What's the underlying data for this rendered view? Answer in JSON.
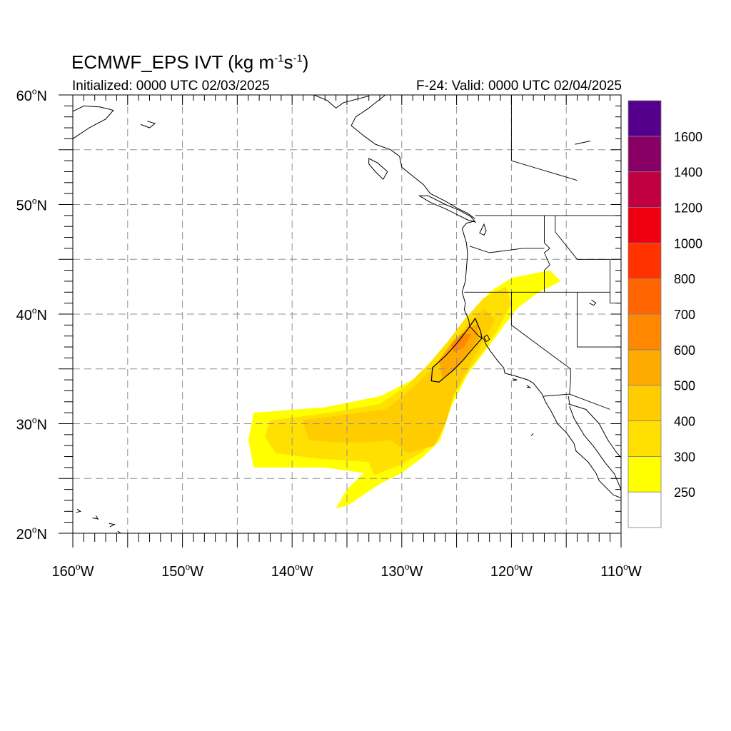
{
  "title": {
    "main": "ECMWF_EPS IVT (kg m",
    "exp1": "-1",
    "mid": "s",
    "exp2": "-1",
    "close": ")"
  },
  "subtitle": {
    "init": "Initialized: 0000 UTC 02/03/2025",
    "valid": "F-24: Valid: 0000 UTC 02/04/2025"
  },
  "axes": {
    "lon_range": [
      -160,
      -110
    ],
    "lat_range": [
      20,
      60
    ],
    "lon_ticks": [
      -160,
      -150,
      -140,
      -130,
      -120,
      -110
    ],
    "lon_labels": [
      "160",
      "150",
      "140",
      "130",
      "120",
      "110"
    ],
    "lon_suffix": "W",
    "lat_ticks": [
      20,
      30,
      40,
      50,
      60
    ],
    "lat_labels": [
      "20",
      "30",
      "40",
      "50",
      "60"
    ],
    "lat_suffix": "N",
    "degree": "o",
    "gridlines": "dashed every 5 degrees"
  },
  "colorbar": {
    "labels": [
      "250",
      "300",
      "400",
      "500",
      "600",
      "700",
      "800",
      "1000",
      "1200",
      "1400",
      "1600"
    ],
    "colors": [
      "#ffffff",
      "#ffff00",
      "#ffe000",
      "#ffcc00",
      "#ffaa00",
      "#ff8800",
      "#ff6400",
      "#ff3200",
      "#ee0011",
      "#c00040",
      "#880066",
      "#55008c"
    ]
  },
  "ivt_field": {
    "units": "kg m-1 s-1",
    "levels": [
      {
        "ivt": 250,
        "polygon": [
          [
            -143.5,
            31
          ],
          [
            -137,
            31.5
          ],
          [
            -132,
            32.5
          ],
          [
            -129,
            34
          ],
          [
            -127,
            36
          ],
          [
            -125,
            38
          ],
          [
            -123.5,
            40
          ],
          [
            -122,
            42
          ],
          [
            -120,
            43.3
          ],
          [
            -116.5,
            44
          ],
          [
            -115.5,
            43
          ],
          [
            -117.5,
            42
          ],
          [
            -119.5,
            40.5
          ],
          [
            -121,
            38.5
          ],
          [
            -122.5,
            36.5
          ],
          [
            -124,
            34.5
          ],
          [
            -125.5,
            31.5
          ],
          [
            -126.5,
            28.5
          ],
          [
            -128,
            27
          ],
          [
            -130,
            25.5
          ],
          [
            -132,
            24.5
          ],
          [
            -133.5,
            23.5
          ],
          [
            -135,
            22.5
          ],
          [
            -136,
            22.3
          ],
          [
            -135,
            24
          ],
          [
            -133.5,
            25.5
          ],
          [
            -137,
            26
          ],
          [
            -143.5,
            26
          ],
          [
            -144,
            28.5
          ]
        ]
      },
      {
        "ivt": 300,
        "polygon": [
          [
            -142,
            30.3
          ],
          [
            -136.5,
            31
          ],
          [
            -132,
            31.8
          ],
          [
            -129.5,
            33.5
          ],
          [
            -127.5,
            35.5
          ],
          [
            -125.8,
            37.5
          ],
          [
            -124.3,
            39.5
          ],
          [
            -122.5,
            41.5
          ],
          [
            -120.5,
            42.5
          ],
          [
            -120,
            41
          ],
          [
            -121,
            39
          ],
          [
            -122.3,
            37
          ],
          [
            -123.8,
            35
          ],
          [
            -125.3,
            32.5
          ],
          [
            -126.5,
            29.5
          ],
          [
            -128,
            27.5
          ],
          [
            -130,
            26.3
          ],
          [
            -132.5,
            25.3
          ],
          [
            -133,
            26.5
          ],
          [
            -137.5,
            26.8
          ],
          [
            -141.5,
            27.3
          ],
          [
            -142.5,
            28.8
          ]
        ]
      },
      {
        "ivt": 400,
        "polygon": [
          [
            -139,
            30.3
          ],
          [
            -135.5,
            30.8
          ],
          [
            -131.5,
            31.3
          ],
          [
            -129.5,
            32.8
          ],
          [
            -127.2,
            35
          ],
          [
            -125.3,
            37.3
          ],
          [
            -123.8,
            39.3
          ],
          [
            -122.5,
            40.5
          ],
          [
            -121.5,
            39.5
          ],
          [
            -122.6,
            37.5
          ],
          [
            -124,
            35
          ],
          [
            -125.3,
            32.5
          ],
          [
            -126,
            30
          ],
          [
            -127,
            28
          ],
          [
            -129.5,
            27.3
          ],
          [
            -131,
            28.5
          ],
          [
            -133,
            28.3
          ],
          [
            -136,
            28.3
          ],
          [
            -138.5,
            28.5
          ]
        ]
      },
      {
        "ivt": 500,
        "polygon": [
          [
            -126.6,
            35.8
          ],
          [
            -125.3,
            37.6
          ],
          [
            -124.1,
            38.6
          ],
          [
            -123.1,
            39.1
          ],
          [
            -123,
            37.8
          ],
          [
            -123.8,
            36.6
          ],
          [
            -125,
            35
          ],
          [
            -126.3,
            34.2
          ]
        ]
      },
      {
        "ivt": 600,
        "polygon": [
          [
            -125.5,
            37.2
          ],
          [
            -124.5,
            38.2
          ],
          [
            -123.7,
            38.2
          ],
          [
            -124.3,
            37
          ],
          [
            -125.2,
            36.5
          ]
        ]
      }
    ],
    "contour": [
      [
        -127.3,
        33.9
      ],
      [
        -127.2,
        35.1
      ],
      [
        -126,
        36.2
      ],
      [
        -125,
        37.3
      ],
      [
        -124,
        38.6
      ],
      [
        -123.3,
        39.6
      ],
      [
        -122.8,
        38.4
      ],
      [
        -122.7,
        37.8
      ],
      [
        -123.4,
        37
      ],
      [
        -124.4,
        35.8
      ],
      [
        -125.4,
        34.8
      ],
      [
        -126.6,
        33.8
      ]
    ]
  },
  "basemap": {
    "line_color": "#000000",
    "coast_west": [
      [
        -123.3,
        48.5
      ],
      [
        -124.1,
        48.3
      ],
      [
        -124.5,
        47.8
      ],
      [
        -124.1,
        46.5
      ],
      [
        -124,
        45.5
      ],
      [
        -124.1,
        44.2
      ],
      [
        -124.2,
        43
      ],
      [
        -124.5,
        42
      ],
      [
        -124.2,
        41
      ],
      [
        -124.3,
        40.4
      ],
      [
        -123.9,
        39.5
      ],
      [
        -123.8,
        38.9
      ],
      [
        -123,
        38
      ],
      [
        -122.5,
        37.7
      ],
      [
        -122.3,
        37.2
      ],
      [
        -121.9,
        36.6
      ],
      [
        -121.3,
        35.8
      ],
      [
        -120.7,
        35.1
      ],
      [
        -120.6,
        34.6
      ],
      [
        -119.8,
        34.4
      ],
      [
        -118.5,
        34
      ],
      [
        -118,
        33.7
      ],
      [
        -117.2,
        32.7
      ],
      [
        -116.9,
        32
      ],
      [
        -116.3,
        31
      ],
      [
        -115.8,
        30
      ],
      [
        -115,
        29.2
      ],
      [
        -114.3,
        28.2
      ],
      [
        -114.1,
        27.5
      ],
      [
        -113,
        26.5
      ],
      [
        -112.3,
        25.5
      ],
      [
        -112,
        24.8
      ],
      [
        -110.7,
        23.5
      ],
      [
        -110.2,
        23.3
      ],
      [
        -109.8,
        23.2
      ]
    ],
    "coast_gulf": [
      [
        -114.7,
        31.6
      ],
      [
        -114.3,
        30.5
      ],
      [
        -113.4,
        29
      ],
      [
        -112.4,
        27.8
      ],
      [
        -111.5,
        26.5
      ],
      [
        -110.6,
        25.4
      ],
      [
        -110,
        24
      ]
    ],
    "coast_gulf_east": [
      [
        -114.8,
        31.8
      ],
      [
        -113.2,
        31.3
      ],
      [
        -112,
        30
      ],
      [
        -111.2,
        28.5
      ],
      [
        -110.5,
        27.5
      ],
      [
        -109.5,
        26.3
      ],
      [
        -109,
        25.5
      ]
    ],
    "coast_alaska": [
      [
        -131.5,
        60
      ],
      [
        -133,
        58.8
      ],
      [
        -134.2,
        58
      ],
      [
        -134.6,
        57.2
      ],
      [
        -133.5,
        56.3
      ],
      [
        -132.4,
        55.5
      ],
      [
        -131,
        55
      ],
      [
        -130.2,
        54.4
      ],
      [
        -130,
        53.4
      ],
      [
        -129,
        52.6
      ],
      [
        -128,
        51.8
      ],
      [
        -127.4,
        51
      ],
      [
        -126,
        50.3
      ],
      [
        -125,
        49.7
      ],
      [
        -124,
        49.2
      ],
      [
        -123.3,
        48.7
      ]
    ],
    "coast_alaska_west": [
      [
        -138,
        60
      ],
      [
        -136.8,
        59.5
      ],
      [
        -136,
        58.8
      ],
      [
        -135.3,
        59.3
      ],
      [
        -133,
        59.9
      ]
    ],
    "bays": [
      [
        [
          -122.5,
          37.9
        ],
        [
          -122.2,
          38.1
        ],
        [
          -122,
          37.7
        ],
        [
          -122.3,
          37.5
        ]
      ],
      [
        [
          -122.5,
          48.2
        ],
        [
          -122.3,
          47.6
        ],
        [
          -122.5,
          47.2
        ],
        [
          -122.9,
          47.4
        ]
      ]
    ],
    "vancouver_island": [
      [
        -128.4,
        50.8
      ],
      [
        -127.4,
        50.2
      ],
      [
        -126,
        49.6
      ],
      [
        -125,
        49.1
      ],
      [
        -124,
        48.6
      ],
      [
        -123.3,
        48.4
      ],
      [
        -123.7,
        48.9
      ],
      [
        -124.8,
        49.5
      ],
      [
        -126,
        50
      ],
      [
        -127.6,
        50.8
      ]
    ],
    "haida_gwaii": [
      [
        -133,
        54.2
      ],
      [
        -132.2,
        53.8
      ],
      [
        -131.3,
        53
      ],
      [
        -131.7,
        52.3
      ],
      [
        -132.4,
        53
      ],
      [
        -133,
        53.7
      ]
    ],
    "islands": [
      [
        [
          -155.9,
          20.2
        ],
        [
          -155.5,
          19.9
        ],
        [
          -155.9,
          19.6
        ],
        [
          -156.1,
          19.9
        ]
      ],
      [
        [
          -156.7,
          20.9
        ],
        [
          -156.2,
          20.8
        ],
        [
          -156.6,
          20.6
        ]
      ],
      [
        [
          -157.9,
          21.6
        ],
        [
          -157.7,
          21.3
        ],
        [
          -158.2,
          21.4
        ]
      ],
      [
        [
          -159.6,
          22.2
        ],
        [
          -159.3,
          22
        ],
        [
          -159.7,
          21.9
        ]
      ],
      [
        [
          -153.2,
          57.6
        ],
        [
          -152.5,
          57.4
        ],
        [
          -153,
          57
        ],
        [
          -153.8,
          57.3
        ]
      ],
      [
        [
          -160,
          56
        ],
        [
          -158.5,
          57
        ],
        [
          -157,
          57.8
        ],
        [
          -156.3,
          58.6
        ],
        [
          -157.5,
          58.9
        ],
        [
          -159,
          59
        ],
        [
          -160,
          58.5
        ]
      ],
      [
        [
          -119.9,
          34.1
        ],
        [
          -119.5,
          34
        ],
        [
          -119.9,
          33.9
        ]
      ],
      [
        [
          -118.6,
          33.5
        ],
        [
          -118.3,
          33.3
        ],
        [
          -118.6,
          33.3
        ]
      ],
      [
        [
          -112.7,
          41.3
        ],
        [
          -112.3,
          41
        ],
        [
          -112.5,
          40.8
        ],
        [
          -112.9,
          41
        ]
      ],
      [
        [
          -114.2,
          55.5
        ],
        [
          -112.8,
          55.8
        ]
      ],
      [
        [
          -118,
          29.1
        ],
        [
          -118.2,
          28.9
        ]
      ]
    ],
    "borders": [
      [
        [
          -123.3,
          49
        ],
        [
          -95,
          49
        ]
      ],
      [
        [
          -124.3,
          42
        ],
        [
          -111,
          42
        ]
      ],
      [
        [
          -120,
          42
        ],
        [
          -120,
          39
        ],
        [
          -114.6,
          35
        ]
      ],
      [
        [
          -117,
          49
        ],
        [
          -117,
          46.5
        ],
        [
          -116.5,
          46
        ],
        [
          -117,
          45.6
        ],
        [
          -116.5,
          44.5
        ],
        [
          -117,
          44
        ],
        [
          -117,
          42
        ]
      ],
      [
        [
          -123.8,
          46.2
        ],
        [
          -122,
          45.6
        ],
        [
          -119,
          46
        ],
        [
          -117,
          46
        ]
      ],
      [
        [
          -114.6,
          35
        ],
        [
          -114.6,
          34
        ],
        [
          -114.7,
          32.7
        ]
      ],
      [
        [
          -117.1,
          32.5
        ],
        [
          -114.7,
          32.7
        ],
        [
          -111,
          31.3
        ]
      ],
      [
        [
          -114,
          42
        ],
        [
          -114,
          37
        ],
        [
          -109,
          37
        ]
      ],
      [
        [
          -111,
          45
        ],
        [
          -111,
          41
        ],
        [
          -109,
          41
        ]
      ],
      [
        [
          -111,
          45
        ],
        [
          -114,
          45
        ],
        [
          -116,
          47.5
        ],
        [
          -116,
          49
        ]
      ],
      [
        [
          -120,
          60
        ],
        [
          -120,
          54
        ],
        [
          -114,
          52.2
        ]
      ],
      [
        [
          -114.8,
          32.5
        ],
        [
          -114.7,
          31.8
        ]
      ]
    ]
  }
}
